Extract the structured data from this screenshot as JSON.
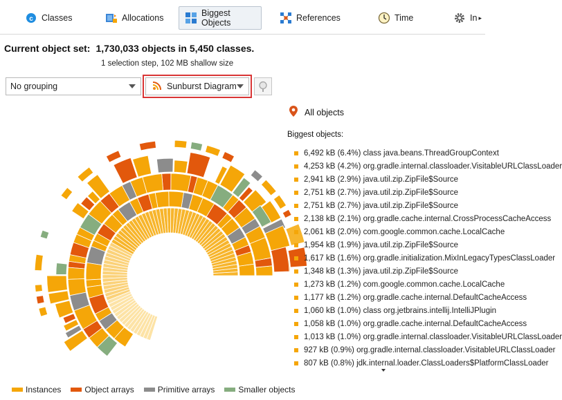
{
  "toolbar": {
    "tabs": [
      {
        "label": "Classes",
        "active": false
      },
      {
        "label": "Allocations",
        "active": false
      },
      {
        "label": "Biggest Objects",
        "active": true
      },
      {
        "label": "References",
        "active": false
      },
      {
        "label": "Time",
        "active": false
      },
      {
        "label": "In",
        "active": false
      }
    ]
  },
  "object_set": {
    "label": "Current object set:",
    "value": "1,730,033 objects in 5,450 classes.",
    "detail": "1 selection step, 102 MB shallow size"
  },
  "controls": {
    "grouping": "No grouping",
    "view_mode": "Sunburst Diagram"
  },
  "panel": {
    "all_objects": "All objects",
    "biggest_label": "Biggest objects:",
    "items": [
      "6,492 kB (6.4%) class java.beans.ThreadGroupContext",
      "4,253 kB (4.2%) org.gradle.internal.classloader.VisitableURLClassLoader",
      "2,941 kB (2.9%) java.util.zip.ZipFile$Source",
      "2,751 kB (2.7%) java.util.zip.ZipFile$Source",
      "2,751 kB (2.7%) java.util.zip.ZipFile$Source",
      "2,138 kB (2.1%) org.gradle.cache.internal.CrossProcessCacheAccess",
      "2,061 kB (2.0%) com.google.common.cache.LocalCache",
      "1,954 kB (1.9%) java.util.zip.ZipFile$Source",
      "1,617 kB (1.6%) org.gradle.initialization.MixInLegacyTypesClassLoader",
      "1,348 kB (1.3%) java.util.zip.ZipFile$Source",
      "1,273 kB (1.2%) com.google.common.cache.LocalCache",
      "1,177 kB (1.2%) org.gradle.cache.internal.DefaultCacheAccess",
      "1,060 kB (1.0%) class org.jetbrains.intellij.IntelliJPlugin",
      "1,058 kB (1.0%) org.gradle.cache.internal.DefaultCacheAccess",
      "1,013 kB (1.0%) org.gradle.internal.classloader.VisitableURLClassLoader",
      "927 kB (0.9%) org.gradle.internal.classloader.VisitableURLClassLoader",
      "807 kB (0.8%) jdk.internal.loader.ClassLoaders$PlatformClassLoader"
    ]
  },
  "legend": [
    {
      "label": "Instances",
      "color": "#f5a608"
    },
    {
      "label": "Object arrays",
      "color": "#e2580c"
    },
    {
      "label": "Primitive arrays",
      "color": "#8c8c8c"
    },
    {
      "label": "Smaller objects",
      "color": "#86ad7f"
    }
  ]
}
